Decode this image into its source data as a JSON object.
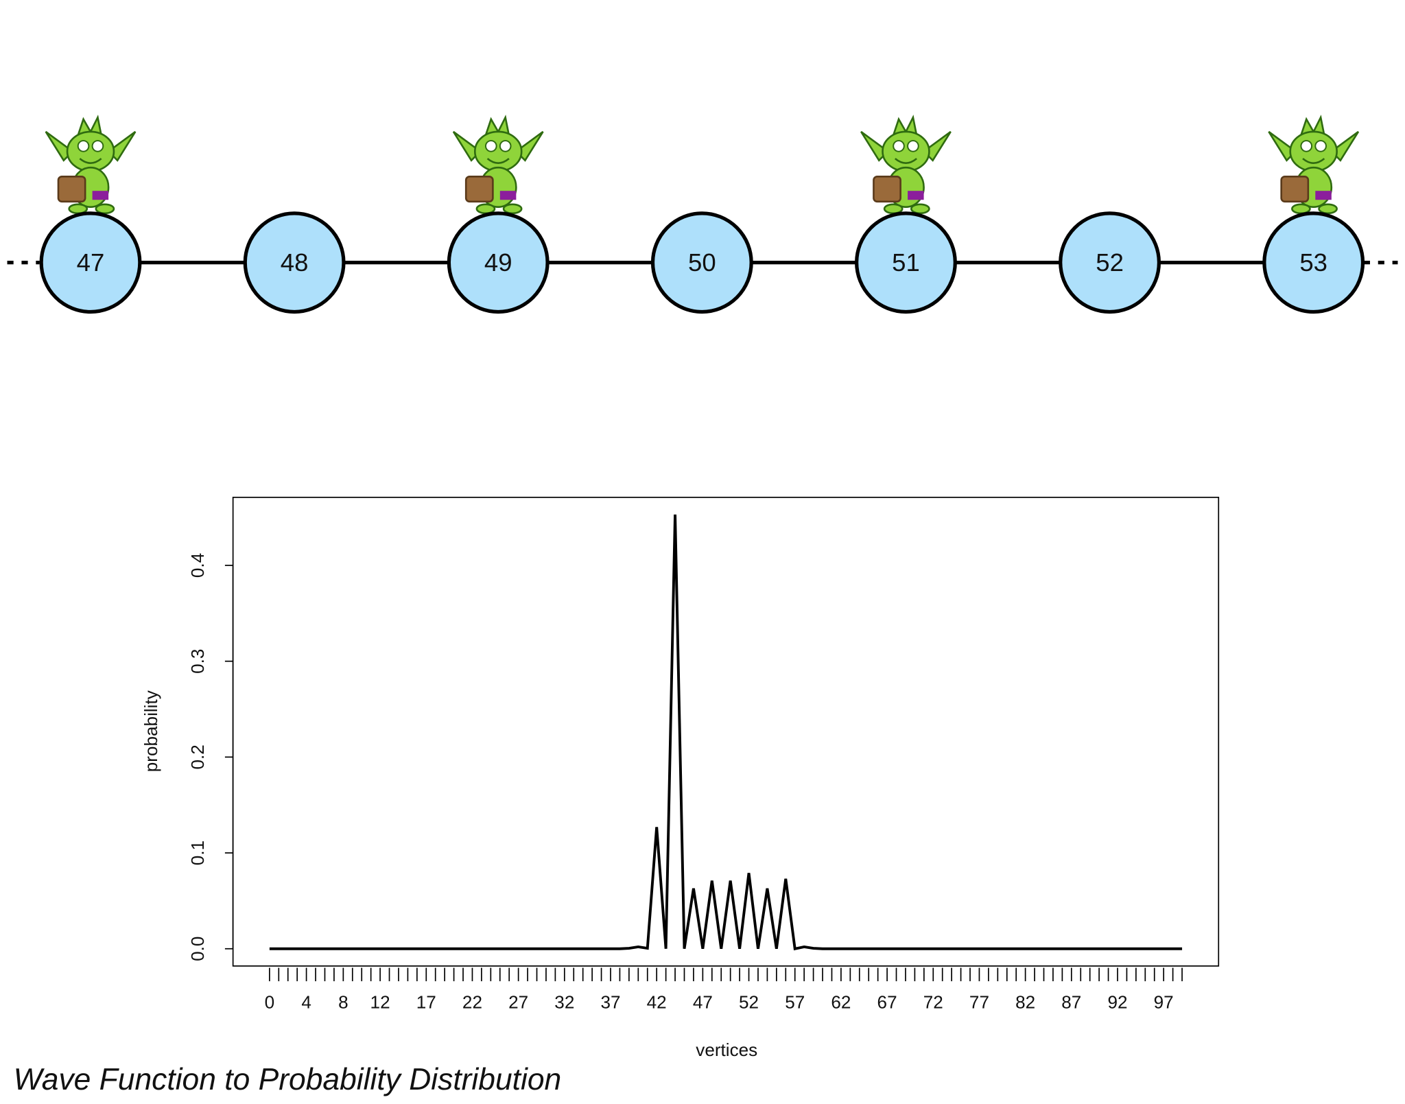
{
  "diagram": {
    "nodes": [
      "47",
      "48",
      "49",
      "50",
      "51",
      "52",
      "53"
    ]
  },
  "chart_data": {
    "type": "line",
    "x_label": "vertices",
    "y_label": "probability",
    "x": [
      0,
      1,
      2,
      3,
      4,
      5,
      6,
      7,
      8,
      9,
      10,
      11,
      12,
      13,
      14,
      15,
      16,
      17,
      18,
      19,
      20,
      21,
      22,
      23,
      24,
      25,
      26,
      27,
      28,
      29,
      30,
      31,
      32,
      33,
      34,
      35,
      36,
      37,
      38,
      39,
      40,
      41,
      42,
      43,
      44,
      45,
      46,
      47,
      48,
      49,
      50,
      51,
      52,
      53,
      54,
      55,
      56,
      57,
      58,
      59,
      60,
      61,
      62,
      63,
      64,
      65,
      66,
      67,
      68,
      69,
      70,
      71,
      72,
      73,
      74,
      75,
      76,
      77,
      78,
      79,
      80,
      81,
      82,
      83,
      84,
      85,
      86,
      87,
      88,
      89,
      90,
      91,
      92,
      93,
      94,
      95,
      96,
      97,
      98,
      99
    ],
    "series": [
      {
        "color": "#000000",
        "values": [
          0,
          0,
          0,
          0,
          0,
          0,
          0,
          0,
          0,
          0,
          0,
          0,
          0,
          0,
          0,
          0,
          0,
          0,
          0,
          0,
          0,
          0,
          0,
          0,
          0,
          0,
          0,
          0,
          0,
          0,
          0,
          0,
          0,
          0,
          0,
          0,
          0,
          0,
          0,
          0.0005,
          0.002,
          0.0005,
          0.127,
          0,
          0.453,
          0,
          0.063,
          0,
          0.071,
          0,
          0.071,
          0,
          0.079,
          0,
          0.063,
          0,
          0.073,
          0,
          0.002,
          0.0005,
          0,
          0,
          0,
          0,
          0,
          0,
          0,
          0,
          0,
          0,
          0,
          0,
          0,
          0,
          0,
          0,
          0,
          0,
          0,
          0,
          0,
          0,
          0,
          0,
          0,
          0,
          0,
          0,
          0,
          0,
          0,
          0,
          0,
          0,
          0,
          0,
          0,
          0,
          0,
          0
        ]
      }
    ],
    "xlim": [
      -3.96,
      102.96
    ],
    "ylim": [
      -0.018,
      0.471
    ],
    "xticks": [
      0,
      4,
      8,
      12,
      17,
      22,
      27,
      32,
      37,
      42,
      47,
      52,
      57,
      62,
      67,
      72,
      77,
      82,
      87,
      92,
      97
    ],
    "yticks": [
      {
        "value": 0,
        "label": "0.0"
      },
      0.1,
      0.2,
      0.3,
      0.4
    ]
  },
  "caption": "Wave Function to Probability Distribution"
}
